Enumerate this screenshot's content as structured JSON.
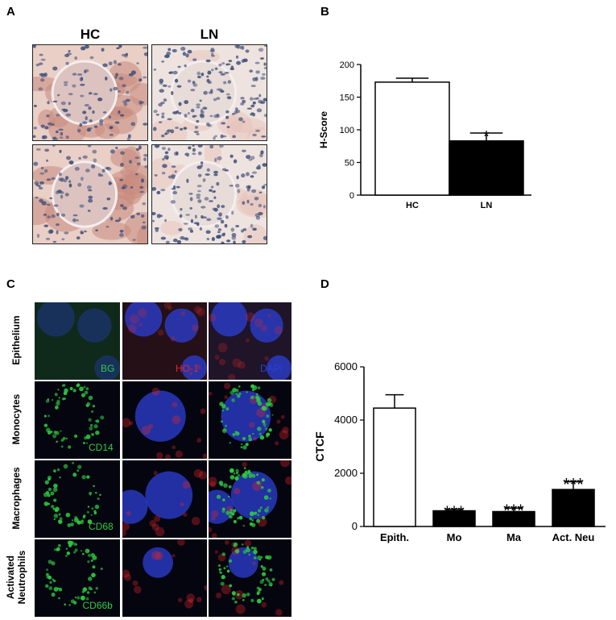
{
  "panels": {
    "A": {
      "letter": "A",
      "columns": [
        "HC",
        "LN"
      ]
    },
    "B": {
      "letter": "B"
    },
    "C": {
      "letter": "C",
      "rows": [
        {
          "label_lines": [
            "Epithelium"
          ],
          "channels": [
            "BG",
            "HO-1",
            "DAPI"
          ]
        },
        {
          "label_lines": [
            "Monocytes"
          ],
          "channels": [
            "CD14",
            "",
            ""
          ]
        },
        {
          "label_lines": [
            "Macrophages"
          ],
          "channels": [
            "CD68",
            "",
            ""
          ]
        },
        {
          "label_lines": [
            "Activated",
            "Neutrophils"
          ],
          "channels": [
            "CD66b",
            "",
            ""
          ]
        }
      ],
      "channel_colors": {
        "green": "#2ecc40",
        "red": "#e0262b",
        "blue": "#2c3fd6"
      }
    },
    "D": {
      "letter": "D"
    }
  },
  "chart_data": [
    {
      "type": "bar",
      "panel": "B",
      "categories": [
        "HC",
        "LN"
      ],
      "values": [
        173,
        83
      ],
      "errors": [
        6,
        12
      ],
      "fills": [
        "#ffffff",
        "#000000"
      ],
      "significance": [
        "",
        "*"
      ],
      "ylabel": "H-Score",
      "ylim": [
        0,
        200
      ],
      "yticks": [
        0,
        50,
        100,
        150,
        200
      ]
    },
    {
      "type": "bar",
      "panel": "D",
      "categories": [
        "Epith.",
        "Mo",
        "Ma",
        "Act. Neu"
      ],
      "values": [
        4450,
        590,
        560,
        1390
      ],
      "errors": [
        500,
        50,
        130,
        290
      ],
      "fills": [
        "#ffffff",
        "#000000",
        "#000000",
        "#000000"
      ],
      "significance": [
        "",
        "***",
        "***",
        "***"
      ],
      "ylabel": "CTCF",
      "ylim": [
        0,
        6000
      ],
      "yticks": [
        0,
        2000,
        4000,
        6000
      ]
    }
  ]
}
